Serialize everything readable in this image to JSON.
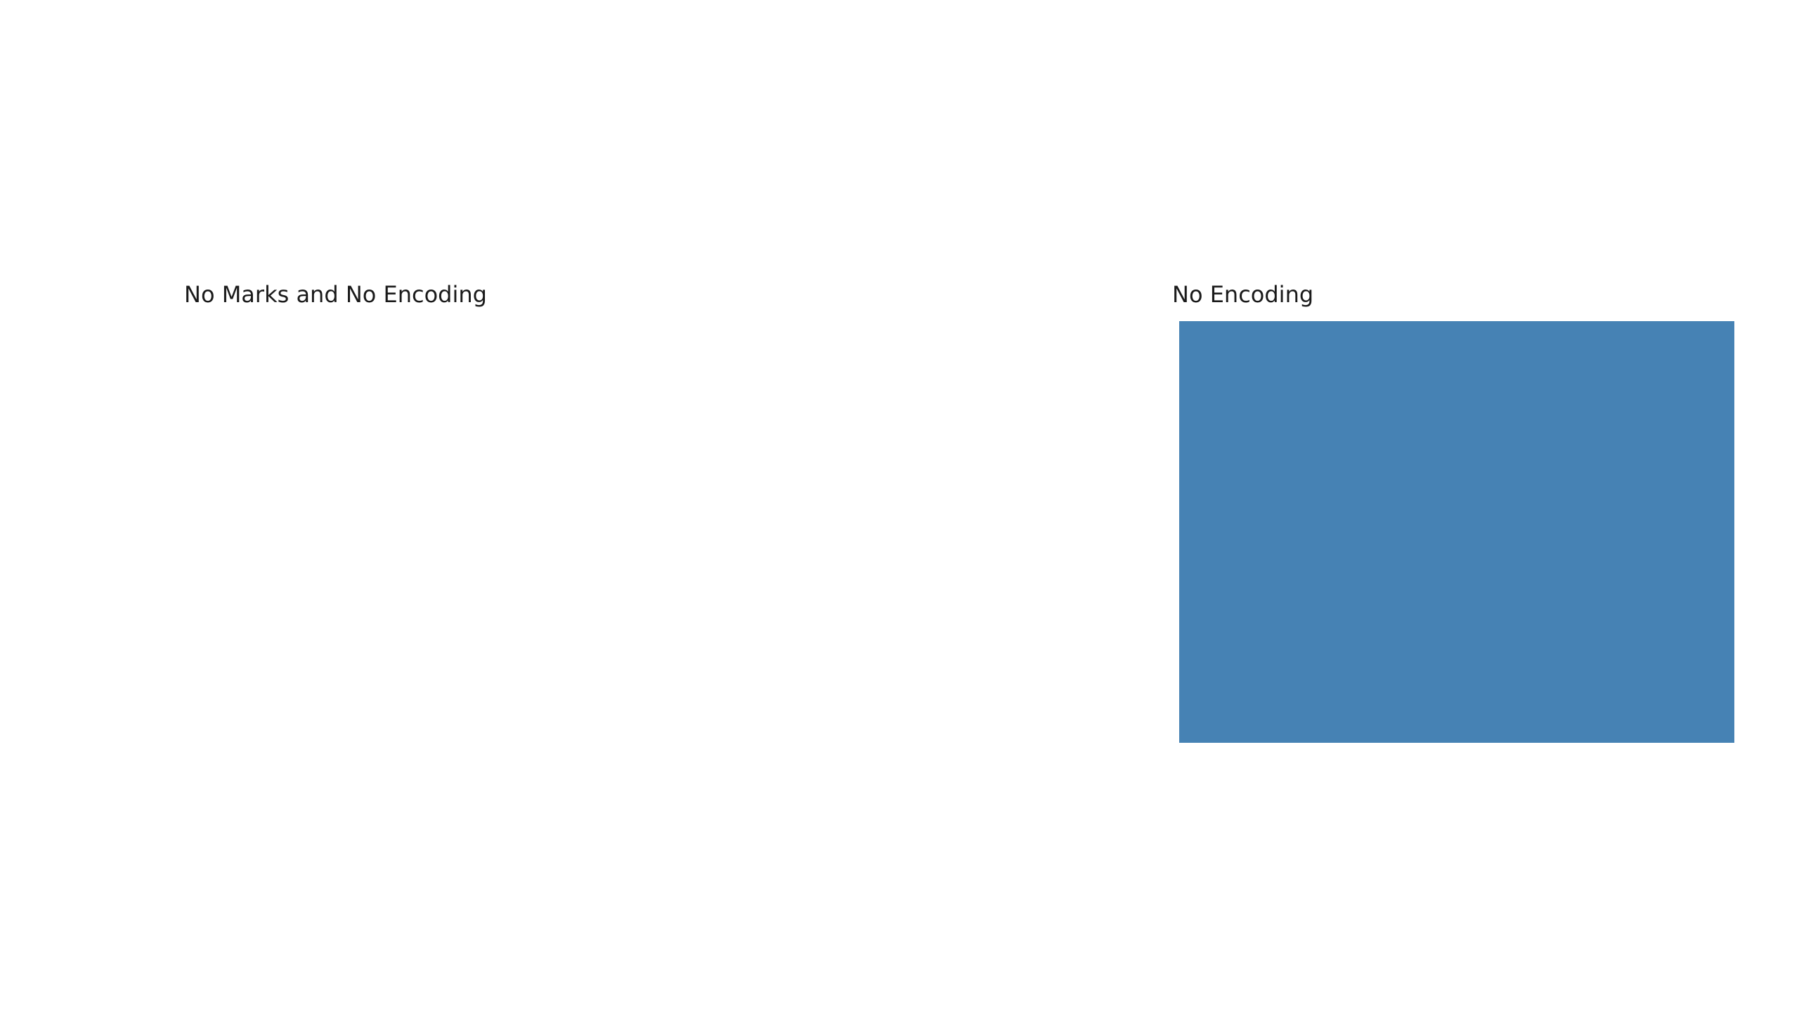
{
  "chart_data": [
    {
      "type": "bar",
      "title": "No Marks and No Encoding",
      "marks": []
    },
    {
      "type": "bar",
      "title": "No Encoding",
      "marks": [
        {
          "fill": "#4682b4"
        }
      ]
    }
  ]
}
